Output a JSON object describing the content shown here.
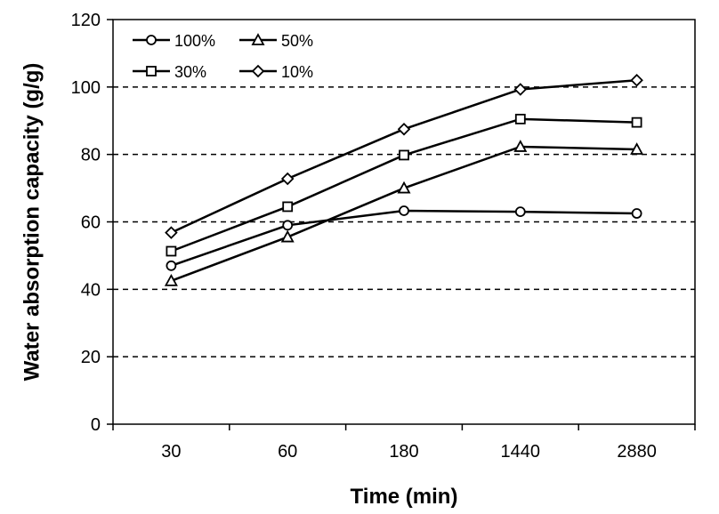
{
  "chart_data": {
    "type": "line",
    "title": "",
    "xlabel": "Time (min)",
    "ylabel": "Water absorption capacity (g/g)",
    "categories": [
      "30",
      "60",
      "180",
      "1440",
      "2880"
    ],
    "ylim": [
      0,
      120
    ],
    "yticks": [
      "0",
      "20",
      "40",
      "60",
      "80",
      "100",
      "120"
    ],
    "grid": "horizontal dashed at 20-unit intervals",
    "legend_position": "top-left",
    "series": [
      {
        "name": "100%",
        "marker": "circle",
        "values": [
          47,
          59,
          63.3,
          63,
          62.5
        ]
      },
      {
        "name": "50%",
        "marker": "triangle",
        "values": [
          42.5,
          55.5,
          70,
          82.3,
          81.5
        ]
      },
      {
        "name": "30%",
        "marker": "square",
        "values": [
          51.3,
          64.5,
          79.8,
          90.5,
          89.5
        ]
      },
      {
        "name": "10%",
        "marker": "diamond",
        "values": [
          56.8,
          72.8,
          87.5,
          99.3,
          102
        ]
      }
    ]
  }
}
